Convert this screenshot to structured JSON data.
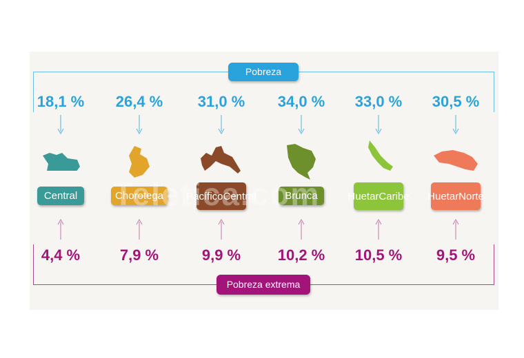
{
  "header": {
    "poverty_label": "Pobreza",
    "extreme_label": "Pobreza extrema"
  },
  "colors": {
    "poverty": "#2aa3dc",
    "extreme": "#a3147a",
    "Central": "#3a9a98",
    "Chorotega": "#e3a42b",
    "Pacifico Central": "#8a4a2a",
    "Brunca": "#6d8f2c",
    "Huetar Caribe": "#8cc43a",
    "Huetar Norte": "#ee7a5a"
  },
  "chart_data": {
    "type": "table",
    "categories": [
      "Central",
      "Chorotega",
      "Pacífico Central",
      "Brunca",
      "Huetar Caribe",
      "Huetar Norte"
    ],
    "series": [
      {
        "name": "Pobreza",
        "values": [
          18.1,
          26.4,
          31.0,
          34.0,
          33.0,
          30.5
        ],
        "labels": [
          "18,1 %",
          "26,4 %",
          "31,0 %",
          "34,0 %",
          "33,0 %",
          "30,5 %"
        ]
      },
      {
        "name": "Pobreza extrema",
        "values": [
          4.4,
          7.9,
          9.9,
          10.2,
          10.5,
          9.5
        ],
        "labels": [
          "4,4 %",
          "7,9 %",
          "9,9 %",
          "10,2 %",
          "10,5 %",
          "9,5 %"
        ]
      }
    ],
    "region_labels": [
      [
        "Central"
      ],
      [
        "Chorotega"
      ],
      [
        "Pacífico",
        "Central"
      ],
      [
        "Brunca"
      ],
      [
        "Huetar",
        "Caribe"
      ],
      [
        "Huetar",
        "Norte"
      ]
    ]
  },
  "watermark": "Teletica.com"
}
